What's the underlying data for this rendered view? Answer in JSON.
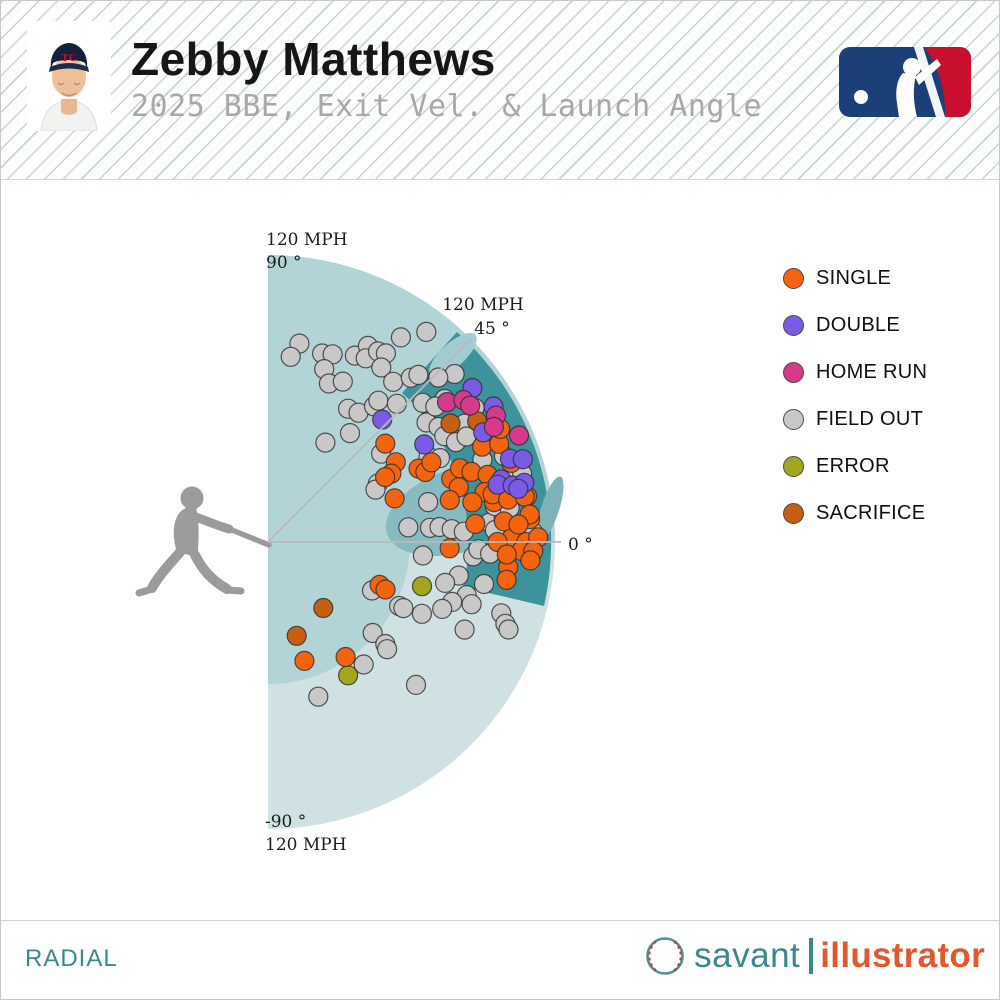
{
  "header": {
    "title": "Zebby Matthews",
    "subtitle": "2025 BBE, Exit Vel. & Launch Angle",
    "team_logo": "minnesota-twins-cap",
    "league_logo": "mlb-logo"
  },
  "footer": {
    "chart_type_label": "RADIAL",
    "brand": {
      "icon": "baseball-icon",
      "name_left": "savant",
      "name_right": "illustrator"
    }
  },
  "theme": {
    "stripe_color": "#c3d8d4",
    "fan_l1": "#cfe1e2",
    "fan_l2": "#b3d4d7",
    "fan_l3": "#87bbc1",
    "fan_l4": "#3d939c",
    "accent_teal": "#3a878c",
    "accent_orange": "#e2572b",
    "silhouette_gray": "#9b9b9b",
    "mlb_navy": "#1b3f77",
    "mlb_red": "#c8102e"
  },
  "legend": [
    {
      "key": "single",
      "label": "SINGLE",
      "color": "#f4640f"
    },
    {
      "key": "double",
      "label": "DOUBLE",
      "color": "#7b5be6"
    },
    {
      "key": "home_run",
      "label": "HOME RUN",
      "color": "#d63a8a"
    },
    {
      "key": "field_out",
      "label": "FIELD OUT",
      "color": "#c8c8c8"
    },
    {
      "key": "error",
      "label": "ERROR",
      "color": "#a1a51f"
    },
    {
      "key": "sacrifice",
      "label": "SACRIFICE",
      "color": "#c45f13"
    }
  ],
  "chart_data": {
    "type": "scatter",
    "coordinate_system": "polar",
    "title": "2025 BBE, Exit Vel. & Launch Angle",
    "radial_axis": {
      "name": "Exit Velocity",
      "unit": "MPH",
      "max": 120
    },
    "angular_axis": {
      "name": "Launch Angle",
      "unit": "degrees",
      "min": -90,
      "max": 90
    },
    "axis_annotations": {
      "top_mph": "120 MPH",
      "top_deg": "90 °",
      "diag_mph": "120 MPH",
      "diag_deg": "45 °",
      "zero_deg": "0 °",
      "bottom_deg": "-90 °",
      "bottom_mph": "120 MPH"
    },
    "point_format": "[exit_velocity_mph, launch_angle_deg]",
    "series": [
      {
        "key": "field_out",
        "name": "FIELD OUT",
        "color": "#c8c8c8",
        "points": [
          [
            84,
            81
          ],
          [
            78,
            83
          ],
          [
            82,
            74
          ],
          [
            83,
            71
          ],
          [
            76,
            72
          ],
          [
            86,
            65
          ],
          [
            92,
            63
          ],
          [
            87,
            62
          ],
          [
            92,
            60
          ],
          [
            93,
            58
          ],
          [
            87,
            57
          ],
          [
            71,
            69
          ],
          [
            74,
            65
          ],
          [
            85,
            52
          ],
          [
            91,
            49
          ],
          [
            94,
            48
          ],
          [
            102,
            57
          ],
          [
            110,
            53
          ],
          [
            65,
            59
          ],
          [
            66,
            55
          ],
          [
            72,
            52
          ],
          [
            75,
            52
          ],
          [
            79,
            47
          ],
          [
            57,
            53
          ],
          [
            48,
            60
          ],
          [
            60,
            38
          ],
          [
            87,
            42
          ],
          [
            83,
            37
          ],
          [
            76,
            28
          ],
          [
            52,
            28
          ],
          [
            105,
            42
          ],
          [
            99,
            44
          ],
          [
            95,
            39
          ],
          [
            90,
            39
          ],
          [
            96,
            31
          ],
          [
            86,
            34
          ],
          [
            86,
            31
          ],
          [
            89,
            28
          ],
          [
            94,
            28
          ],
          [
            105,
            20
          ],
          [
            107,
            15
          ],
          [
            96,
            21
          ],
          [
            103,
            33
          ],
          [
            80,
            26
          ],
          [
            50,
            26
          ],
          [
            69,
            14
          ],
          [
            59,
            6
          ],
          [
            68,
            5
          ],
          [
            65,
            -5
          ],
          [
            48,
            -25
          ],
          [
            61,
            -26
          ],
          [
            63,
            -26
          ],
          [
            71,
            -25
          ],
          [
            58,
            -41
          ],
          [
            65,
            -41
          ],
          [
            103,
            10
          ],
          [
            72,
            5
          ],
          [
            77,
            4
          ],
          [
            93,
            5
          ],
          [
            99,
            6
          ],
          [
            111,
            2
          ],
          [
            82,
            3
          ],
          [
            86,
            -4
          ],
          [
            88,
            -2
          ],
          [
            93,
            -3
          ],
          [
            81,
            -10
          ],
          [
            76,
            -13
          ],
          [
            86,
            -15
          ],
          [
            81,
            -18
          ],
          [
            89,
            -17
          ],
          [
            92,
            -11
          ],
          [
            78,
            -21
          ],
          [
            102,
            -17
          ],
          [
            105,
            -19
          ],
          [
            90,
            -24
          ],
          [
            107,
            -20
          ],
          [
            65,
            -52
          ],
          [
            67,
            -42
          ],
          [
            68,
            -72
          ],
          [
            86,
            -44
          ],
          [
            110,
            15
          ],
          [
            96,
            9
          ],
          [
            102,
            8
          ],
          [
            95,
            3
          ]
        ]
      },
      {
        "key": "sacrifice",
        "name": "SACRIFICE",
        "color": "#c45f13",
        "points": [
          [
            91,
            33
          ],
          [
            101,
            30
          ],
          [
            36,
            -50
          ],
          [
            41,
            -73
          ]
        ]
      },
      {
        "key": "error",
        "name": "ERROR",
        "color": "#a1a51f",
        "points": [
          [
            103,
            3
          ],
          [
            67,
            -16
          ],
          [
            65,
            -59
          ]
        ]
      },
      {
        "key": "single",
        "name": "SINGLE",
        "color": "#f4640f",
        "points": [
          [
            64,
            40
          ],
          [
            63,
            32
          ],
          [
            59,
            29
          ],
          [
            56,
            29
          ],
          [
            70,
            26
          ],
          [
            72,
            24
          ],
          [
            76,
            26
          ],
          [
            81,
            19
          ],
          [
            86,
            21
          ],
          [
            90,
            19
          ],
          [
            96,
            17
          ],
          [
            98,
            24
          ],
          [
            105,
            23
          ],
          [
            56,
            19
          ],
          [
            83,
            16
          ],
          [
            93,
            13
          ],
          [
            101,
            13
          ],
          [
            78,
            13
          ],
          [
            87,
            11
          ],
          [
            96,
            10
          ],
          [
            110,
            10
          ],
          [
            87,
            5
          ],
          [
            110,
            5
          ],
          [
            102,
            1
          ],
          [
            108,
            0
          ],
          [
            113,
            1
          ],
          [
            76,
            -2
          ],
          [
            109,
            -3
          ],
          [
            101,
            -6
          ],
          [
            101,
            -9
          ],
          [
            50,
            -21
          ],
          [
            53,
            -22
          ],
          [
            52,
            -73
          ],
          [
            58,
            -56
          ],
          [
            108,
            26
          ],
          [
            107,
            18
          ],
          [
            96,
            12
          ],
          [
            102,
            10
          ],
          [
            109,
            10
          ],
          [
            110,
            6
          ],
          [
            99,
            5
          ],
          [
            105,
            4
          ],
          [
            96,
            0
          ],
          [
            106,
            -2
          ],
          [
            111,
            -2
          ],
          [
            100,
            -3
          ],
          [
            110,
            -4
          ]
        ]
      },
      {
        "key": "double",
        "name": "DOUBLE",
        "color": "#7b5be6",
        "points": [
          [
            70,
            47
          ],
          [
            77,
            32
          ],
          [
            107,
            37
          ],
          [
            110,
            31
          ],
          [
            101,
            27
          ],
          [
            107,
            19
          ],
          [
            112,
            18
          ],
          [
            101,
            15
          ],
          [
            99,
            14
          ],
          [
            105,
            13
          ],
          [
            110,
            13
          ],
          [
            107,
            12
          ]
        ]
      },
      {
        "key": "home_run",
        "name": "HOME RUN",
        "color": "#d63a8a",
        "points": [
          [
            95,
            38
          ],
          [
            101,
            36
          ],
          [
            102,
            34
          ],
          [
            109,
            29
          ],
          [
            106,
            27
          ],
          [
            114,
            23
          ]
        ]
      }
    ]
  }
}
